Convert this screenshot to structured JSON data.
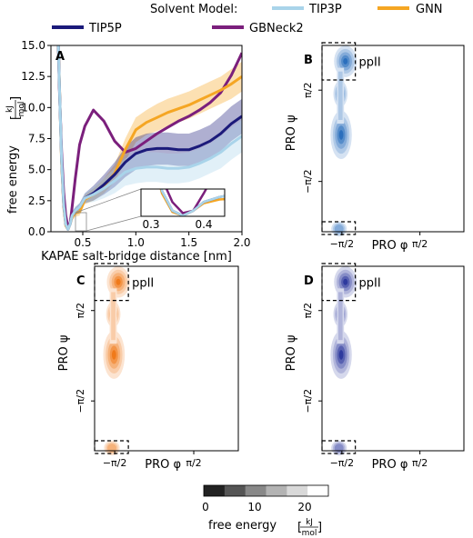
{
  "legend": {
    "title": "Solvent Model:",
    "entries": [
      {
        "label": "TIP3P",
        "color": "#a9d4ea"
      },
      {
        "label": "GNN",
        "color": "#f5a623"
      },
      {
        "label": "TIP5P",
        "color": "#1b1a7a"
      },
      {
        "label": "GBNeck2",
        "color": "#7b1f7c"
      }
    ]
  },
  "colors": {
    "TIP5P": "#1b1a7a",
    "TIP3P": "#a9d4ea",
    "GNN": "#f5a623",
    "GBNeck2": "#7b1f7c",
    "panelB": "#2b6fbd",
    "panelC": "#f07a1a",
    "panelD": "#2e3a9e"
  },
  "chart_data": [
    {
      "type": "line",
      "panel_letter": "A",
      "xlabel": "KAPAE salt-bridge distance [nm]",
      "ylabel": "free energy",
      "ylabel_unit_num": "kJ",
      "ylabel_unit_den": "mol",
      "xlim": [
        0.2,
        2.0
      ],
      "ylim": [
        0.0,
        15.0
      ],
      "xticks": [
        "0.5",
        "1.0",
        "1.5",
        "2.0"
      ],
      "yticks": [
        "0.0",
        "2.5",
        "5.0",
        "7.5",
        "10.0",
        "12.5",
        "15.0"
      ],
      "series": [
        {
          "name": "GBNeck2",
          "x": [
            0.27,
            0.28,
            0.3,
            0.32,
            0.34,
            0.36,
            0.38,
            0.4,
            0.43,
            0.47,
            0.52,
            0.6,
            0.7,
            0.8,
            0.9,
            1.0,
            1.1,
            1.2,
            1.3,
            1.4,
            1.5,
            1.6,
            1.7,
            1.8,
            1.9,
            2.0
          ],
          "y": [
            15.0,
            11.5,
            6.5,
            3.2,
            1.3,
            0.4,
            0.6,
            2.0,
            4.3,
            7.0,
            8.5,
            9.8,
            8.9,
            7.3,
            6.4,
            6.7,
            7.3,
            7.9,
            8.4,
            8.9,
            9.3,
            9.8,
            10.4,
            11.2,
            12.6,
            14.4
          ]
        },
        {
          "name": "GNN",
          "x": [
            0.27,
            0.28,
            0.3,
            0.32,
            0.34,
            0.36,
            0.38,
            0.4,
            0.43,
            0.47,
            0.52,
            0.6,
            0.7,
            0.8,
            0.9,
            1.0,
            1.1,
            1.2,
            1.3,
            1.4,
            1.5,
            1.6,
            1.7,
            1.8,
            1.9,
            2.0
          ],
          "y": [
            15.0,
            12.0,
            5.5,
            2.0,
            0.5,
            0.2,
            0.6,
            1.2,
            1.5,
            1.6,
            2.6,
            3.0,
            3.7,
            4.7,
            6.6,
            8.2,
            8.8,
            9.2,
            9.6,
            9.9,
            10.2,
            10.6,
            11.0,
            11.4,
            11.9,
            12.5
          ],
          "band": [
            0.0,
            0.0,
            0.2,
            0.2,
            0.1,
            0.1,
            0.2,
            0.3,
            0.3,
            0.3,
            0.4,
            0.5,
            0.6,
            0.7,
            0.9,
            1.0,
            1.0,
            1.1,
            1.1,
            1.1,
            1.1,
            1.1,
            1.1,
            1.1,
            1.2,
            1.2
          ]
        },
        {
          "name": "TIP5P",
          "x": [
            0.27,
            0.28,
            0.3,
            0.32,
            0.34,
            0.36,
            0.38,
            0.4,
            0.43,
            0.47,
            0.52,
            0.6,
            0.7,
            0.8,
            0.9,
            1.0,
            1.1,
            1.2,
            1.3,
            1.4,
            1.5,
            1.6,
            1.7,
            1.8,
            1.9,
            2.0
          ],
          "y": [
            15.0,
            11.8,
            5.8,
            2.2,
            0.6,
            0.2,
            0.6,
            1.3,
            1.7,
            2.0,
            2.7,
            3.1,
            3.8,
            4.6,
            5.6,
            6.3,
            6.6,
            6.7,
            6.7,
            6.6,
            6.6,
            6.9,
            7.3,
            7.9,
            8.7,
            9.3
          ],
          "band": [
            0.0,
            0.0,
            0.2,
            0.2,
            0.1,
            0.1,
            0.2,
            0.3,
            0.3,
            0.3,
            0.4,
            0.6,
            0.8,
            1.0,
            1.2,
            1.3,
            1.3,
            1.3,
            1.3,
            1.3,
            1.3,
            1.3,
            1.3,
            1.4,
            1.4,
            1.4
          ]
        },
        {
          "name": "TIP3P",
          "x": [
            0.27,
            0.28,
            0.3,
            0.32,
            0.34,
            0.36,
            0.38,
            0.4,
            0.43,
            0.47,
            0.52,
            0.6,
            0.7,
            0.8,
            0.9,
            1.0,
            1.1,
            1.2,
            1.3,
            1.4,
            1.5,
            1.6,
            1.7,
            1.8,
            1.9,
            2.0
          ],
          "y": [
            15.0,
            11.8,
            5.8,
            2.2,
            0.6,
            0.2,
            0.6,
            1.3,
            1.7,
            2.0,
            2.7,
            3.0,
            3.5,
            4.1,
            4.8,
            5.1,
            5.2,
            5.2,
            5.1,
            5.1,
            5.2,
            5.5,
            5.9,
            6.4,
            7.1,
            7.7
          ],
          "band": [
            0.0,
            0.0,
            0.2,
            0.2,
            0.1,
            0.1,
            0.2,
            0.3,
            0.3,
            0.3,
            0.4,
            0.6,
            0.8,
            1.0,
            1.1,
            1.2,
            1.2,
            1.2,
            1.2,
            1.2,
            1.2,
            1.2,
            1.2,
            1.3,
            1.3,
            1.3
          ]
        }
      ],
      "inset": {
        "xlim": [
          0.28,
          0.44
        ],
        "xticks": [
          "0.3",
          "0.4"
        ]
      }
    },
    {
      "type": "heatmap",
      "panel_letter": "B",
      "series_name": "TIP3P",
      "xlabel": "PRO φ",
      "ylabel": "PRO ψ",
      "xticks": [
        "−π/2",
        "π/2"
      ],
      "yticks": [
        "π/2",
        "−π/2"
      ],
      "annotation": "ppII"
    },
    {
      "type": "heatmap",
      "panel_letter": "C",
      "series_name": "GNN",
      "xlabel": "PRO φ",
      "ylabel": "PRO ψ",
      "xticks": [
        "−π/2",
        "π/2"
      ],
      "yticks": [
        "π/2",
        "−π/2"
      ],
      "annotation": "ppII"
    },
    {
      "type": "heatmap",
      "panel_letter": "D",
      "series_name": "TIP5P",
      "xlabel": "PRO φ",
      "ylabel": "PRO ψ",
      "xticks": [
        "−π/2",
        "π/2"
      ],
      "yticks": [
        "π/2",
        "−π/2"
      ],
      "annotation": "ppII"
    }
  ],
  "colorbar": {
    "ticks": [
      "0",
      "10",
      "20"
    ],
    "label": "free energy",
    "unit_num": "kJ",
    "unit_den": "mol",
    "levels": [
      "#222222",
      "#555555",
      "#888888",
      "#b3b3b3",
      "#d9d9d9",
      "#ffffff"
    ]
  }
}
